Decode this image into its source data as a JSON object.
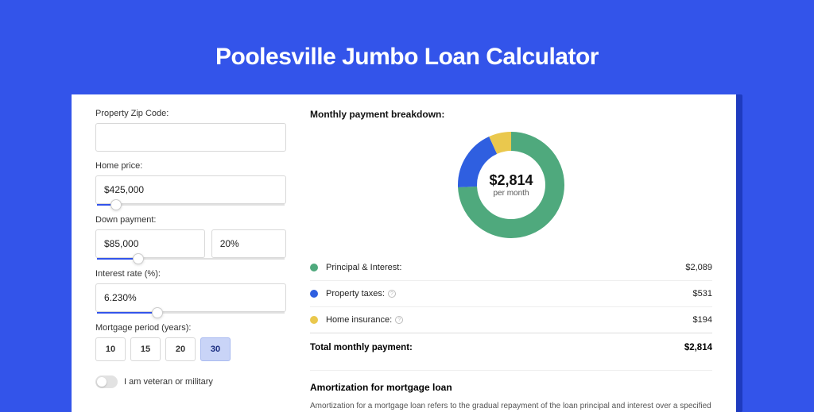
{
  "page": {
    "title": "Poolesville Jumbo Loan Calculator",
    "colors": {
      "page_bg": "#3354ea",
      "shadow": "#1e3bbf",
      "card_bg": "#ffffff",
      "accent": "#3354ea"
    }
  },
  "form": {
    "zip_label": "Property Zip Code:",
    "zip_value": "",
    "home_price_label": "Home price:",
    "home_price_value": "$425,000",
    "home_price_slider_pct": 10,
    "down_payment_label": "Down payment:",
    "down_payment_value": "$85,000",
    "down_payment_pct": "20%",
    "down_payment_slider_pct": 22,
    "interest_label": "Interest rate (%):",
    "interest_value": "6.230%",
    "interest_slider_pct": 32,
    "period_label": "Mortgage period (years):",
    "periods": [
      "10",
      "15",
      "20",
      "30"
    ],
    "period_selected_index": 3,
    "veteran_label": "I am veteran or military"
  },
  "breakdown": {
    "heading": "Monthly payment breakdown:",
    "center_value": "$2,814",
    "center_sub": "per month",
    "donut": {
      "radius": 55,
      "stroke": 24,
      "slices": [
        {
          "key": "principal_interest",
          "pct": 74.2,
          "color": "#4fa97d"
        },
        {
          "key": "property_taxes",
          "pct": 18.9,
          "color": "#2f5fe0"
        },
        {
          "key": "home_insurance",
          "pct": 6.9,
          "color": "#eac84d"
        }
      ]
    },
    "items": [
      {
        "label": "Principal & Interest:",
        "value": "$2,089",
        "color": "#4fa97d",
        "info": false
      },
      {
        "label": "Property taxes:",
        "value": "$531",
        "color": "#2f5fe0",
        "info": true
      },
      {
        "label": "Home insurance:",
        "value": "$194",
        "color": "#eac84d",
        "info": true
      }
    ],
    "total_label": "Total monthly payment:",
    "total_value": "$2,814"
  },
  "amortization": {
    "heading": "Amortization for mortgage loan",
    "body": "Amortization for a mortgage loan refers to the gradual repayment of the loan principal and interest over a specified"
  }
}
